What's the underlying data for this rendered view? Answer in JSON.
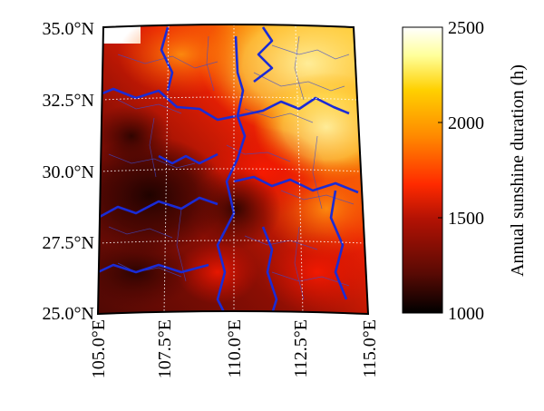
{
  "map": {
    "lat_labels": [
      "35.0°N",
      "32.5°N",
      "30.0°N",
      "27.5°N",
      "25.0°N"
    ],
    "lon_labels": [
      "105.0°E",
      "107.5°E",
      "110.0°E",
      "112.5°E",
      "115.0°E"
    ],
    "lat_range": [
      25.0,
      35.0
    ],
    "lon_range": [
      105.0,
      115.0
    ],
    "graticule_style": "dotted white",
    "province_border_color": "#1a2bd6",
    "county_border_color": "#3b4bd0"
  },
  "colorbar": {
    "label": "Annual sunshine duration (h)",
    "ticks": [
      "2500",
      "2000",
      "1500",
      "1000"
    ],
    "range": [
      1000,
      2500
    ],
    "colormap": [
      "#000000",
      "#5a0a04",
      "#b31204",
      "#ff2a00",
      "#ff8a00",
      "#ffd000",
      "#ffff99",
      "#ffffff"
    ]
  }
}
